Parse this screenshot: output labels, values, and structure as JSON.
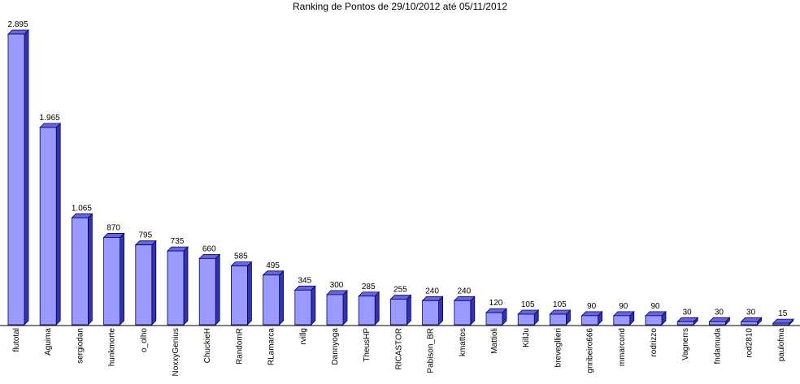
{
  "chart_data": {
    "type": "bar",
    "title": "Ranking de Pontos de 29/10/2012 até 05/11/2012",
    "categories": [
      "flutotal",
      "Aguima",
      "sergiodan",
      "hunkmorte",
      "o_olho",
      "NoxxyGenius",
      "ChuckieH",
      "RandomR",
      "RLamarca",
      "rvillg",
      "Dannyoga",
      "TheusHP",
      "RICASTOR",
      "Pabison_BR",
      "kmattos",
      "Mattioli",
      "KillJu",
      "brevegllieri",
      "gnribeiro666",
      "mmarcond",
      "rodrizzo",
      "Vagnerrs",
      "fndamuda",
      "rod2810",
      "paulofma"
    ],
    "values": [
      2895,
      1965,
      1065,
      870,
      795,
      735,
      660,
      585,
      495,
      345,
      300,
      285,
      255,
      240,
      240,
      120,
      105,
      105,
      90,
      90,
      90,
      30,
      30,
      30,
      15
    ],
    "value_labels": [
      "2.895",
      "1.965",
      "1.065",
      "870",
      "795",
      "735",
      "660",
      "585",
      "495",
      "345",
      "300",
      "285",
      "255",
      "240",
      "240",
      "120",
      "105",
      "105",
      "90",
      "90",
      "90",
      "30",
      "30",
      "30",
      "15"
    ],
    "color": "#9999ff"
  }
}
